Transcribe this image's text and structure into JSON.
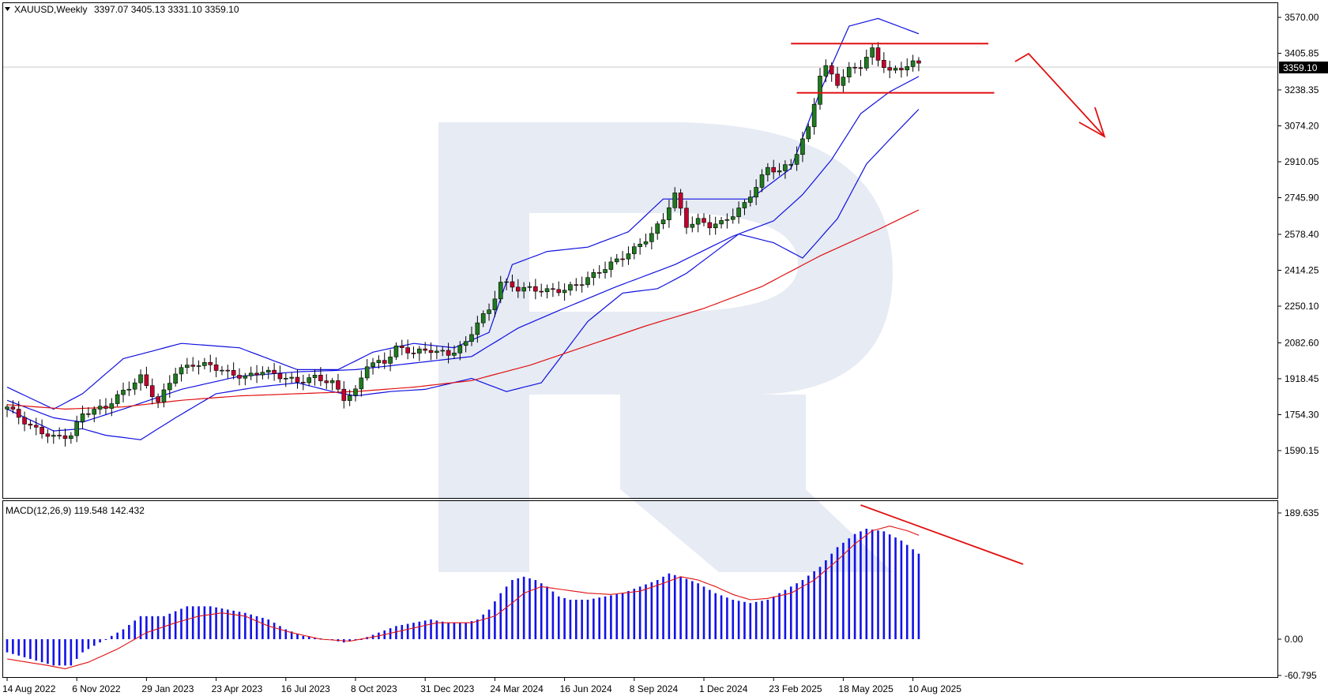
{
  "header": {
    "symbol_timeframe": "XAUUSD,Weekly",
    "ohlc": "3397.07 3405.13 3331.10 3359.10"
  },
  "macd_header": "MACD(12,26,9) 119.548 142.432",
  "current_price_label": "3359.10",
  "colors": {
    "bull_candle": "#1f7a1f",
    "bear_candle": "#c4002d",
    "bands": "#1010e0",
    "ma_red": "#e01010",
    "macd_hist": "#1212e6",
    "macd_signal": "#e01010",
    "annotation": "#e01010",
    "watermark": "#e6ebf4"
  },
  "chart_data": [
    {
      "type": "candlestick",
      "title": "XAUUSD,Weekly",
      "ylim": [
        1500,
        3660
      ],
      "y_ticks": [
        "3570.00",
        "3405.85",
        "3238.35",
        "3074.20",
        "2910.05",
        "2745.90",
        "2578.40",
        "2414.25",
        "2250.10",
        "2082.60",
        "1918.45",
        "1754.30",
        "1590.15"
      ],
      "x_labels": [
        "14 Aug 2022",
        "6 Nov 2022",
        "29 Jan 2023",
        "23 Apr 2023",
        "16 Jul 2023",
        "8 Oct 2023",
        "31 Dec 2023",
        "24 Mar 2024",
        "16 Jun 2024",
        "8 Sep 2024",
        "1 Dec 2024",
        "23 Feb 2025",
        "18 May 2025",
        "10 Aug 2025"
      ],
      "x_label_index": [
        0,
        12,
        24,
        36,
        48,
        60,
        72,
        84,
        96,
        108,
        120,
        132,
        144,
        156
      ],
      "close_anchors": [
        [
          0,
          1790
        ],
        [
          4,
          1700
        ],
        [
          8,
          1650
        ],
        [
          11,
          1660
        ],
        [
          13,
          1760
        ],
        [
          17,
          1790
        ],
        [
          20,
          1860
        ],
        [
          23,
          1925
        ],
        [
          26,
          1810
        ],
        [
          29,
          1950
        ],
        [
          32,
          1985
        ],
        [
          35,
          1980
        ],
        [
          38,
          1945
        ],
        [
          41,
          1925
        ],
        [
          44,
          1955
        ],
        [
          47,
          1930
        ],
        [
          50,
          1905
        ],
        [
          53,
          1925
        ],
        [
          56,
          1900
        ],
        [
          58,
          1830
        ],
        [
          60,
          1860
        ],
        [
          62,
          1985
        ],
        [
          65,
          1995
        ],
        [
          67,
          2060
        ],
        [
          70,
          2040
        ],
        [
          73,
          2050
        ],
        [
          76,
          2030
        ],
        [
          79,
          2080
        ],
        [
          81,
          2180
        ],
        [
          83,
          2230
        ],
        [
          85,
          2360
        ],
        [
          88,
          2330
        ],
        [
          90,
          2330
        ],
        [
          93,
          2320
        ],
        [
          96,
          2325
        ],
        [
          99,
          2360
        ],
        [
          102,
          2410
        ],
        [
          105,
          2460
        ],
        [
          108,
          2510
        ],
        [
          111,
          2580
        ],
        [
          113,
          2650
        ],
        [
          114,
          2710
        ],
        [
          115,
          2760
        ],
        [
          117,
          2620
        ],
        [
          119,
          2640
        ],
        [
          121,
          2620
        ],
        [
          123,
          2630
        ],
        [
          125,
          2670
        ],
        [
          127,
          2715
        ],
        [
          129,
          2800
        ],
        [
          131,
          2880
        ],
        [
          133,
          2870
        ],
        [
          135,
          2900
        ],
        [
          137,
          3010
        ],
        [
          138,
          3060
        ],
        [
          139,
          3180
        ],
        [
          140,
          3310
        ],
        [
          141,
          3340
        ],
        [
          143,
          3270
        ],
        [
          145,
          3330
        ],
        [
          147,
          3350
        ],
        [
          149,
          3420
        ],
        [
          150,
          3380
        ],
        [
          152,
          3320
        ],
        [
          154,
          3340
        ],
        [
          156,
          3360
        ],
        [
          157,
          3359
        ]
      ],
      "bollinger_upper_anchors": [
        [
          0,
          1880
        ],
        [
          8,
          1780
        ],
        [
          13,
          1850
        ],
        [
          20,
          2010
        ],
        [
          30,
          2080
        ],
        [
          40,
          2060
        ],
        [
          50,
          1960
        ],
        [
          57,
          1960
        ],
        [
          63,
          2040
        ],
        [
          70,
          2080
        ],
        [
          77,
          2060
        ],
        [
          83,
          2130
        ],
        [
          87,
          2440
        ],
        [
          93,
          2500
        ],
        [
          100,
          2520
        ],
        [
          107,
          2590
        ],
        [
          113,
          2740
        ],
        [
          121,
          2740
        ],
        [
          128,
          2740
        ],
        [
          135,
          2880
        ],
        [
          140,
          3230
        ],
        [
          145,
          3530
        ],
        [
          150,
          3565
        ],
        [
          157,
          3495
        ]
      ],
      "bollinger_lower_anchors": [
        [
          0,
          1780
        ],
        [
          8,
          1680
        ],
        [
          13,
          1690
        ],
        [
          17,
          1660
        ],
        [
          23,
          1640
        ],
        [
          29,
          1740
        ],
        [
          36,
          1850
        ],
        [
          43,
          1880
        ],
        [
          50,
          1900
        ],
        [
          56,
          1860
        ],
        [
          60,
          1840
        ],
        [
          66,
          1860
        ],
        [
          72,
          1870
        ],
        [
          80,
          1920
        ],
        [
          86,
          1860
        ],
        [
          92,
          1900
        ],
        [
          100,
          2180
        ],
        [
          106,
          2310
        ],
        [
          112,
          2330
        ],
        [
          117,
          2400
        ],
        [
          121,
          2480
        ],
        [
          126,
          2580
        ],
        [
          132,
          2540
        ],
        [
          137,
          2470
        ],
        [
          143,
          2650
        ],
        [
          148,
          2900
        ],
        [
          153,
          3040
        ],
        [
          157,
          3150
        ]
      ],
      "bollinger_mid_anchors": [
        [
          0,
          1820
        ],
        [
          8,
          1740
        ],
        [
          13,
          1720
        ],
        [
          20,
          1780
        ],
        [
          30,
          1870
        ],
        [
          40,
          1930
        ],
        [
          50,
          1950
        ],
        [
          60,
          1960
        ],
        [
          70,
          1990
        ],
        [
          80,
          2020
        ],
        [
          88,
          2150
        ],
        [
          95,
          2230
        ],
        [
          105,
          2340
        ],
        [
          115,
          2440
        ],
        [
          125,
          2570
        ],
        [
          132,
          2640
        ],
        [
          137,
          2760
        ],
        [
          142,
          2920
        ],
        [
          147,
          3130
        ],
        [
          152,
          3230
        ],
        [
          157,
          3300
        ]
      ],
      "ma_red_anchors": [
        [
          0,
          1800
        ],
        [
          10,
          1780
        ],
        [
          20,
          1790
        ],
        [
          30,
          1820
        ],
        [
          40,
          1840
        ],
        [
          50,
          1850
        ],
        [
          60,
          1860
        ],
        [
          70,
          1880
        ],
        [
          80,
          1910
        ],
        [
          90,
          1980
        ],
        [
          100,
          2070
        ],
        [
          110,
          2160
        ],
        [
          120,
          2240
        ],
        [
          130,
          2340
        ],
        [
          140,
          2480
        ],
        [
          150,
          2600
        ],
        [
          157,
          2690
        ]
      ],
      "horizontal_levels": [
        3450,
        3225
      ],
      "annotation": "down-arrow"
    },
    {
      "type": "bar",
      "title": "MACD(12,26,9)",
      "ylim": [
        -60.795,
        189.635
      ],
      "y_ticks": [
        "189.635",
        "0.00",
        "-60.795"
      ],
      "histogram_anchors": [
        [
          0,
          -20
        ],
        [
          8,
          -40
        ],
        [
          11,
          -40
        ],
        [
          13,
          -20
        ],
        [
          17,
          0
        ],
        [
          20,
          15
        ],
        [
          23,
          35
        ],
        [
          27,
          35
        ],
        [
          31,
          50
        ],
        [
          35,
          50
        ],
        [
          38,
          45
        ],
        [
          41,
          40
        ],
        [
          45,
          30
        ],
        [
          48,
          15
        ],
        [
          51,
          5
        ],
        [
          55,
          0
        ],
        [
          58,
          -5
        ],
        [
          61,
          0
        ],
        [
          64,
          10
        ],
        [
          67,
          20
        ],
        [
          70,
          25
        ],
        [
          73,
          30
        ],
        [
          76,
          25
        ],
        [
          79,
          25
        ],
        [
          81,
          30
        ],
        [
          83,
          45
        ],
        [
          85,
          70
        ],
        [
          87,
          90
        ],
        [
          89,
          95
        ],
        [
          91,
          90
        ],
        [
          93,
          80
        ],
        [
          95,
          65
        ],
        [
          97,
          60
        ],
        [
          100,
          60
        ],
        [
          103,
          65
        ],
        [
          106,
          70
        ],
        [
          109,
          80
        ],
        [
          112,
          90
        ],
        [
          114,
          100
        ],
        [
          116,
          95
        ],
        [
          119,
          85
        ],
        [
          122,
          70
        ],
        [
          125,
          60
        ],
        [
          128,
          55
        ],
        [
          131,
          60
        ],
        [
          134,
          75
        ],
        [
          137,
          90
        ],
        [
          140,
          110
        ],
        [
          143,
          140
        ],
        [
          146,
          160
        ],
        [
          148,
          168
        ],
        [
          151,
          164
        ],
        [
          154,
          150
        ],
        [
          157,
          130
        ]
      ],
      "signal_anchors": [
        [
          0,
          -30
        ],
        [
          7,
          -40
        ],
        [
          10,
          -45
        ],
        [
          14,
          -35
        ],
        [
          19,
          -15
        ],
        [
          24,
          10
        ],
        [
          29,
          25
        ],
        [
          33,
          35
        ],
        [
          37,
          40
        ],
        [
          41,
          35
        ],
        [
          45,
          20
        ],
        [
          49,
          10
        ],
        [
          54,
          0
        ],
        [
          59,
          -3
        ],
        [
          64,
          5
        ],
        [
          69,
          15
        ],
        [
          74,
          25
        ],
        [
          80,
          25
        ],
        [
          84,
          35
        ],
        [
          87,
          55
        ],
        [
          89,
          70
        ],
        [
          92,
          80
        ],
        [
          96,
          75
        ],
        [
          100,
          70
        ],
        [
          104,
          68
        ],
        [
          109,
          73
        ],
        [
          113,
          85
        ],
        [
          116,
          95
        ],
        [
          119,
          90
        ],
        [
          122,
          80
        ],
        [
          125,
          68
        ],
        [
          128,
          60
        ],
        [
          131,
          62
        ],
        [
          135,
          70
        ],
        [
          139,
          90
        ],
        [
          143,
          120
        ],
        [
          146,
          145
        ],
        [
          149,
          165
        ],
        [
          152,
          172
        ],
        [
          155,
          165
        ],
        [
          157,
          158
        ]
      ],
      "annotation": "divergence-line"
    }
  ]
}
